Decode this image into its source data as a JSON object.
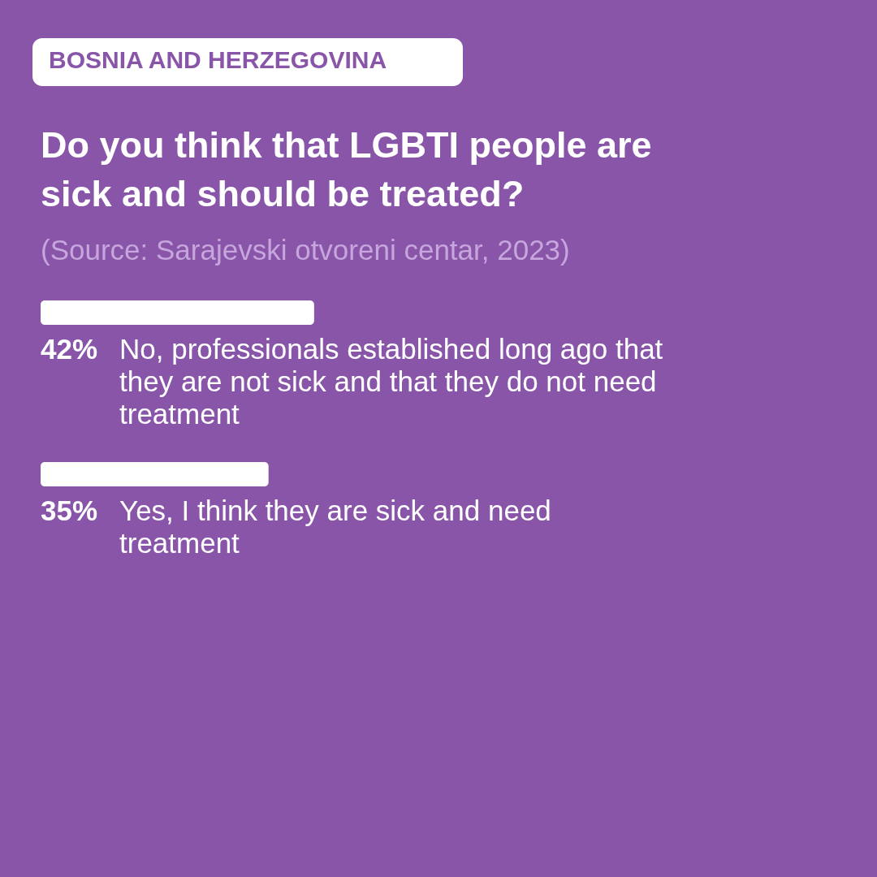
{
  "chart_data": {
    "type": "bar",
    "orientation": "horizontal",
    "title": "Do you think that LGBTI people are sick and should be treated?",
    "annotations": [
      "BOSNIA AND HERZEGOVINA",
      "(Source: Sarajevski otvoreni centar, 2023)"
    ],
    "categories": [
      "No, professionals established long ago that they are not sick and that they do not need treatment",
      "Yes, I think they are sick and need treatment"
    ],
    "values": [
      42,
      35
    ],
    "value_labels": [
      "42%",
      "35%"
    ],
    "color": "#ffffff"
  }
}
